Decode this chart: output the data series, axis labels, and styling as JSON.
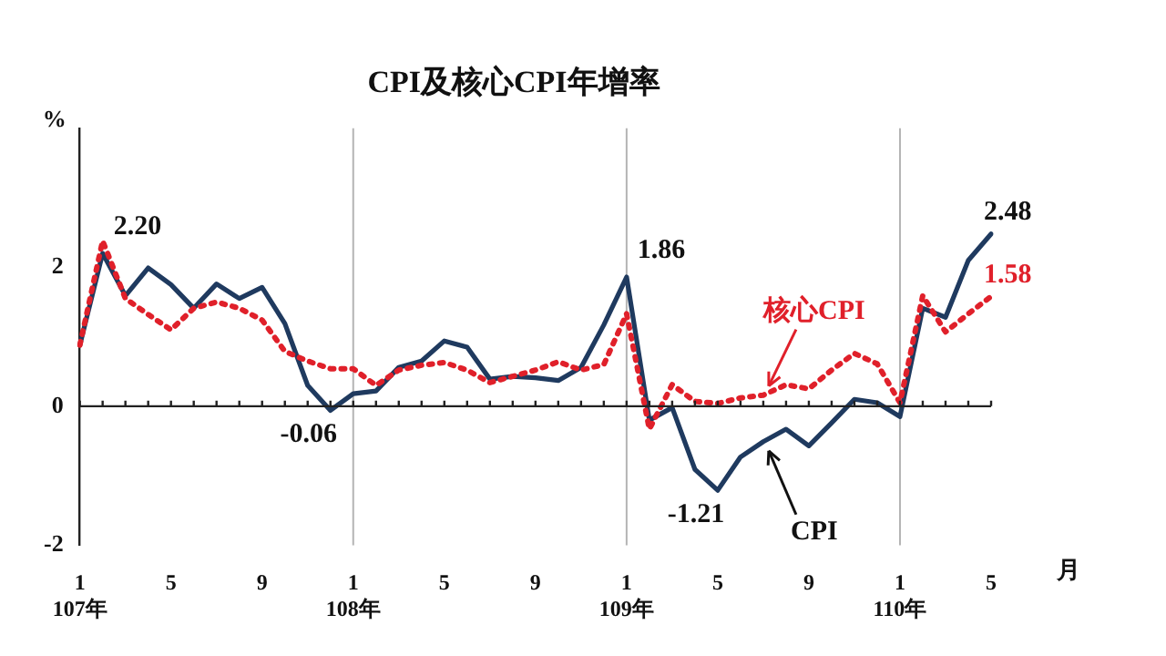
{
  "chart_data": {
    "type": "line",
    "title": "CPI及核心CPI年增率",
    "xlabel": "月",
    "ylabel": "%",
    "categories": [
      "1\n107年",
      null,
      null,
      null,
      "5",
      null,
      null,
      null,
      "9",
      null,
      null,
      null,
      "1\n108年",
      null,
      null,
      null,
      "5",
      null,
      null,
      null,
      "9",
      null,
      null,
      null,
      "1\n109年",
      null,
      null,
      null,
      "5",
      null,
      null,
      null,
      "9",
      null,
      null,
      null,
      "1\n110年",
      null,
      null,
      null,
      "5"
    ],
    "series": [
      {
        "name": "CPI",
        "color": "#1f3a5f",
        "line_style": "solid",
        "values": [
          0.88,
          2.2,
          1.59,
          1.99,
          1.75,
          1.41,
          1.76,
          1.55,
          1.71,
          1.19,
          0.3,
          -0.06,
          0.18,
          0.22,
          0.56,
          0.65,
          0.94,
          0.85,
          0.39,
          0.43,
          0.41,
          0.37,
          0.56,
          1.17,
          1.86,
          -0.2,
          -0.02,
          -0.91,
          -1.21,
          -0.73,
          -0.51,
          -0.33,
          -0.57,
          -0.24,
          0.1,
          0.05,
          -0.15,
          1.41,
          1.28,
          2.1,
          2.48
        ],
        "value_labels": [
          null,
          "2.20",
          null,
          null,
          null,
          null,
          null,
          null,
          null,
          null,
          null,
          "-0.06",
          null,
          null,
          null,
          null,
          null,
          null,
          null,
          null,
          null,
          null,
          null,
          null,
          "1.86",
          null,
          null,
          null,
          "-1.21",
          null,
          null,
          null,
          null,
          null,
          null,
          null,
          null,
          null,
          null,
          null,
          "2.48"
        ]
      },
      {
        "name": "核心CPI",
        "color": "#e0202a",
        "line_style": "dotted",
        "values": [
          0.88,
          2.38,
          1.55,
          1.32,
          1.1,
          1.41,
          1.5,
          1.41,
          1.24,
          0.79,
          0.65,
          0.54,
          0.54,
          0.3,
          0.52,
          0.59,
          0.63,
          0.52,
          0.34,
          0.43,
          0.52,
          0.64,
          0.52,
          0.6,
          1.33,
          -0.33,
          0.31,
          0.07,
          0.04,
          0.12,
          0.16,
          0.31,
          0.25,
          0.52,
          0.76,
          0.61,
          0.05,
          1.59,
          1.07,
          1.33,
          1.58
        ],
        "value_labels": [
          null,
          null,
          null,
          null,
          null,
          null,
          null,
          null,
          null,
          null,
          null,
          null,
          null,
          null,
          null,
          null,
          null,
          null,
          null,
          null,
          null,
          null,
          null,
          null,
          null,
          null,
          null,
          null,
          null,
          null,
          null,
          null,
          null,
          null,
          null,
          null,
          null,
          null,
          null,
          null,
          "1.58"
        ]
      }
    ],
    "ylim": [
      -2,
      4
    ],
    "yticks": [
      -2,
      0,
      2
    ],
    "grid": false,
    "legend": false,
    "marker": "none",
    "ref_lines": [
      {
        "axis": "x",
        "value": "1\n108年",
        "color": "#b4b4b4"
      },
      {
        "axis": "x",
        "value": "1\n109年",
        "color": "#b4b4b4"
      },
      {
        "axis": "x",
        "value": "1\n110年",
        "color": "#b4b4b4"
      }
    ]
  }
}
